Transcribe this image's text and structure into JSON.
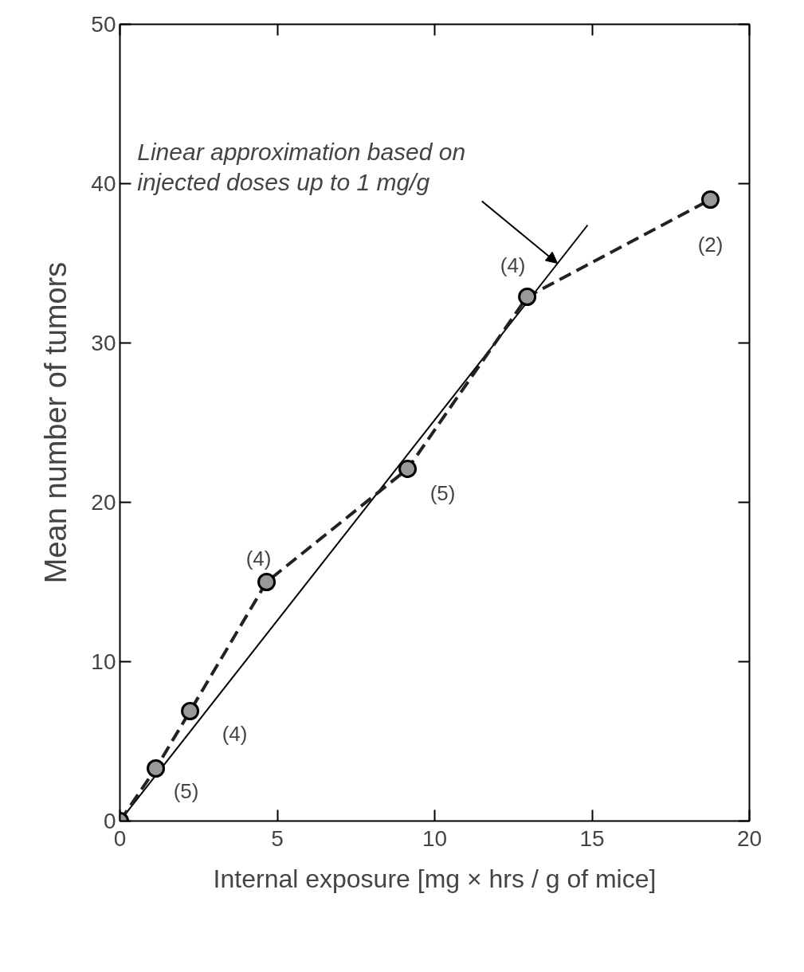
{
  "chart_data": {
    "type": "line",
    "xlabel": "Internal exposure [mg × hrs / g of mice]",
    "ylabel": "Mean number of tumors",
    "xlim": [
      0,
      20
    ],
    "ylim": [
      0,
      50
    ],
    "xticks": [
      0,
      5,
      10,
      15,
      20
    ],
    "yticks": [
      0,
      10,
      20,
      30,
      40,
      50
    ],
    "grid": false,
    "series": [
      {
        "color": "#000000",
        "line_style": "solid",
        "x": [
          0,
          14.86
        ],
        "values": [
          0,
          37.4
        ]
      },
      {
        "color": "#222222",
        "line_style": "dashed",
        "marker": "circle",
        "x": [
          0,
          1.14,
          2.23,
          4.66,
          9.14,
          12.94,
          18.76
        ],
        "values": [
          0,
          3.3,
          6.9,
          15.0,
          22.1,
          32.9,
          39.0
        ]
      }
    ],
    "annotations": [
      {
        "text": "(5)",
        "x": 1.14,
        "y": 3.3
      },
      {
        "text": "(4)",
        "x": 2.23,
        "y": 6.9
      },
      {
        "text": "(4)",
        "x": 4.66,
        "y": 15.0
      },
      {
        "text": "(5)",
        "x": 9.14,
        "y": 22.1
      },
      {
        "text": "(4)",
        "x": 12.94,
        "y": 32.9
      },
      {
        "text": "(2)",
        "x": 18.76,
        "y": 39.0
      },
      {
        "text": "Linear approximation based on\ninjected doses up to 1 mg/g",
        "x": 13.9,
        "y": 35.0
      }
    ]
  }
}
